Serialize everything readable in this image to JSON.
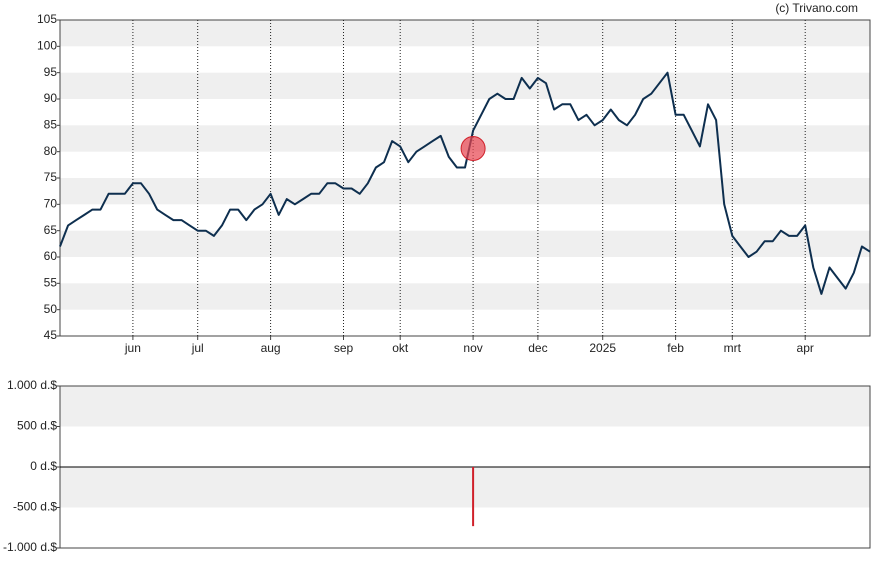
{
  "credit": "(c) Trivano.com",
  "chart_data": [
    {
      "type": "line",
      "color": "#0e2f4f",
      "grid": true,
      "band_color": "#efefef",
      "categories": [
        null,
        null,
        null,
        null,
        null,
        null,
        null,
        null,
        null,
        "jun",
        null,
        null,
        null,
        null,
        null,
        null,
        null,
        "jul",
        null,
        null,
        null,
        null,
        null,
        null,
        null,
        null,
        "aug",
        null,
        null,
        null,
        null,
        null,
        null,
        null,
        null,
        "sep",
        null,
        null,
        null,
        null,
        null,
        null,
        "okt",
        null,
        null,
        null,
        null,
        null,
        null,
        null,
        null,
        "nov",
        null,
        null,
        null,
        null,
        null,
        null,
        null,
        "dec",
        null,
        null,
        null,
        null,
        null,
        null,
        null,
        "2025",
        null,
        null,
        null,
        null,
        null,
        null,
        null,
        null,
        "feb",
        null,
        null,
        null,
        null,
        null,
        null,
        "mrt",
        null,
        null,
        null,
        null,
        null,
        null,
        null,
        null,
        "apr",
        null,
        null,
        null,
        null,
        null,
        null,
        null,
        null
      ],
      "values": [
        62,
        66,
        67,
        68,
        69,
        69,
        72,
        72,
        72,
        74,
        74,
        72,
        69,
        68,
        67,
        67,
        66,
        65,
        65,
        64,
        66,
        69,
        69,
        67,
        69,
        70,
        72,
        68,
        71,
        70,
        71,
        72,
        72,
        74,
        74,
        73,
        73,
        72,
        74,
        77,
        78,
        82,
        81,
        78,
        80,
        81,
        82,
        83,
        79,
        77,
        77,
        84,
        87,
        90,
        91,
        90,
        90,
        94,
        92,
        94,
        93,
        88,
        89,
        89,
        86,
        87,
        85,
        86,
        88,
        86,
        85,
        87,
        90,
        91,
        93,
        95,
        87,
        87,
        84,
        81,
        89,
        86,
        70,
        64,
        62,
        60,
        61,
        63,
        63,
        65,
        64,
        64,
        66,
        58,
        53,
        58,
        56,
        54,
        57,
        62,
        61
      ],
      "marker": {
        "x": "nov",
        "value": 80.6,
        "color": "#e8434f"
      },
      "ylim": [
        45,
        105
      ],
      "yticks": [
        45,
        50,
        55,
        60,
        65,
        70,
        75,
        80,
        85,
        90,
        95,
        100,
        105
      ]
    },
    {
      "type": "bar",
      "grid": true,
      "band_color": "#efefef",
      "bars": [
        {
          "x": "nov",
          "value": -730,
          "color": "#d0202a"
        }
      ],
      "ylim": [
        -1000,
        1000
      ],
      "yticks": [
        {
          "value": -1000,
          "label": "-1.000 d.$"
        },
        {
          "value": -500,
          "label": "-500 d.$"
        },
        {
          "value": 0,
          "label": "0 d.$"
        },
        {
          "value": 500,
          "label": "500 d.$"
        },
        {
          "value": 1000,
          "label": "1.000 d.$"
        }
      ]
    }
  ]
}
